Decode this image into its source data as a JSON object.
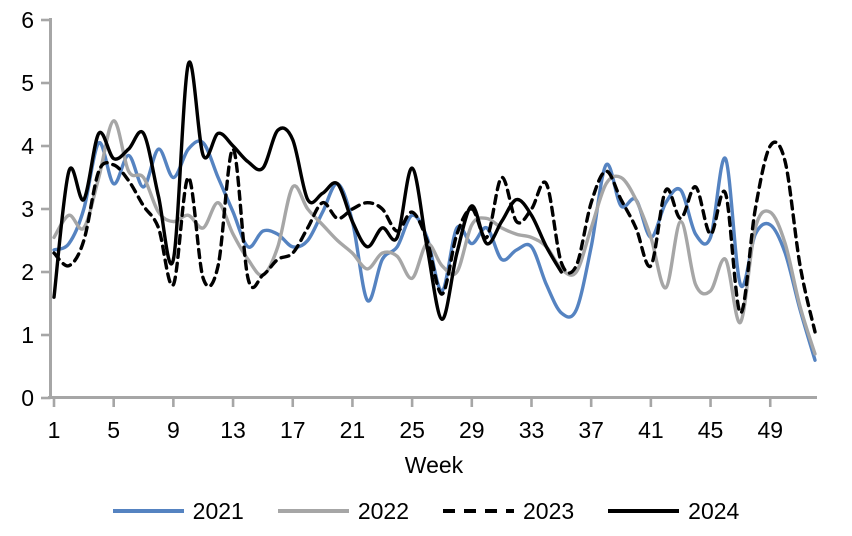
{
  "chart_data": {
    "type": "line",
    "title": "",
    "xlabel": "Week",
    "ylabel": "",
    "xlim": [
      1,
      52
    ],
    "ylim": [
      0,
      6
    ],
    "grid": false,
    "legend_position": "bottom",
    "x_ticks": [
      "1",
      "5",
      "9",
      "13",
      "17",
      "21",
      "25",
      "29",
      "33",
      "37",
      "41",
      "45",
      "49"
    ],
    "x_tick_weeks": [
      1,
      5,
      9,
      13,
      17,
      21,
      25,
      29,
      33,
      37,
      41,
      45,
      49
    ],
    "y_ticks": [
      "0",
      "1",
      "2",
      "3",
      "4",
      "5",
      "6"
    ],
    "y_tick_values": [
      0,
      1,
      2,
      3,
      4,
      5,
      6
    ],
    "x_weeks_total": 52,
    "series": [
      {
        "name": "2021",
        "color": "#5583C1",
        "line_style": "solid",
        "start_week": 1,
        "values": [
          2.35,
          2.45,
          3.0,
          4.05,
          3.4,
          3.85,
          3.35,
          3.95,
          3.5,
          3.95,
          4.05,
          3.5,
          2.95,
          2.4,
          2.65,
          2.6,
          2.4,
          2.5,
          2.95,
          3.4,
          2.8,
          1.55,
          2.2,
          2.4,
          2.9,
          2.55,
          1.7,
          2.7,
          2.45,
          2.7,
          2.2,
          2.35,
          2.4,
          1.8,
          1.35,
          1.4,
          2.4,
          3.7,
          3.05,
          3.15,
          2.55,
          3.1,
          3.3,
          2.6,
          2.55,
          3.8,
          1.8,
          2.6,
          2.75,
          2.3,
          1.4,
          0.6
        ]
      },
      {
        "name": "2022",
        "color": "#A6A6A6",
        "line_style": "solid",
        "start_week": 1,
        "values": [
          2.55,
          2.9,
          2.7,
          3.5,
          4.4,
          3.6,
          3.5,
          2.95,
          2.8,
          2.9,
          2.7,
          3.1,
          2.6,
          2.2,
          1.95,
          2.4,
          3.35,
          3.0,
          2.75,
          2.5,
          2.3,
          2.05,
          2.3,
          2.25,
          1.9,
          2.45,
          2.1,
          2.0,
          2.75,
          2.85,
          2.7,
          2.6,
          2.55,
          2.4,
          2.05,
          2.0,
          2.7,
          3.4,
          3.5,
          3.15,
          2.55,
          1.75,
          2.8,
          1.8,
          1.7,
          2.2,
          1.2,
          2.7,
          2.95,
          2.45,
          1.45,
          0.7
        ]
      },
      {
        "name": "2023",
        "color": "#000000",
        "line_style": "dashed",
        "start_week": 1,
        "values": [
          2.3,
          2.1,
          2.5,
          3.6,
          3.7,
          3.45,
          3.05,
          2.7,
          1.8,
          3.5,
          1.9,
          2.1,
          3.95,
          1.9,
          1.95,
          2.2,
          2.3,
          2.7,
          3.1,
          2.85,
          3.0,
          3.1,
          3.0,
          2.65,
          2.95,
          2.5,
          1.65,
          2.6,
          3.0,
          2.55,
          3.5,
          2.8,
          3.0,
          3.4,
          2.15,
          2.1,
          3.1,
          3.6,
          3.15,
          2.7,
          2.1,
          3.3,
          2.85,
          3.35,
          2.6,
          3.25,
          1.35,
          3.0,
          4.0,
          3.75,
          2.1,
          1.05
        ]
      },
      {
        "name": "2024",
        "color": "#000000",
        "line_style": "solid",
        "start_week": 1,
        "values": [
          1.6,
          3.6,
          3.15,
          4.2,
          3.8,
          3.95,
          4.2,
          3.2,
          2.2,
          5.3,
          3.85,
          4.2,
          4.0,
          3.75,
          3.65,
          4.25,
          4.1,
          3.15,
          3.25,
          3.4,
          2.8,
          2.4,
          2.7,
          2.55,
          3.65,
          2.4,
          1.25,
          2.3,
          3.05,
          2.45,
          2.8,
          3.15,
          2.9,
          2.4,
          2.0
        ]
      }
    ]
  },
  "style": {
    "axis_color": "#A6A6A6",
    "text_color": "#000000",
    "background": "#FFFFFF"
  }
}
